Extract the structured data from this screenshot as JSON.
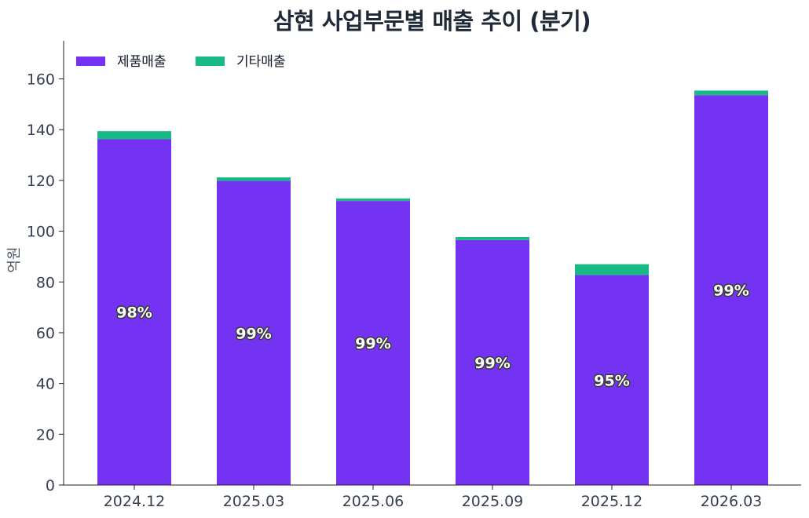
{
  "chart_data": {
    "type": "bar",
    "stacked": true,
    "title": "삼현 사업부문별 매출 추이 (분기)",
    "xlabel": "",
    "ylabel": "억원",
    "ylim": [
      0,
      175
    ],
    "yticks": [
      0,
      20,
      40,
      60,
      80,
      100,
      120,
      140,
      160
    ],
    "categories": [
      "2024.12",
      "2025.03",
      "2025.06",
      "2025.09",
      "2025.12",
      "2026.03"
    ],
    "series": [
      {
        "name": "제품매출",
        "color": "#7433f2",
        "values": [
          136.2,
          119.8,
          111.9,
          96.5,
          82.7,
          153.6
        ]
      },
      {
        "name": "기타매출",
        "color": "#18b987",
        "values": [
          3.2,
          1.4,
          1.0,
          1.2,
          4.3,
          1.8
        ]
      }
    ],
    "bar_labels": [
      "98%",
      "99%",
      "99%",
      "99%",
      "95%",
      "99%"
    ],
    "legend": {
      "position": "top-left",
      "orientation": "horizontal"
    },
    "grid": false
  }
}
